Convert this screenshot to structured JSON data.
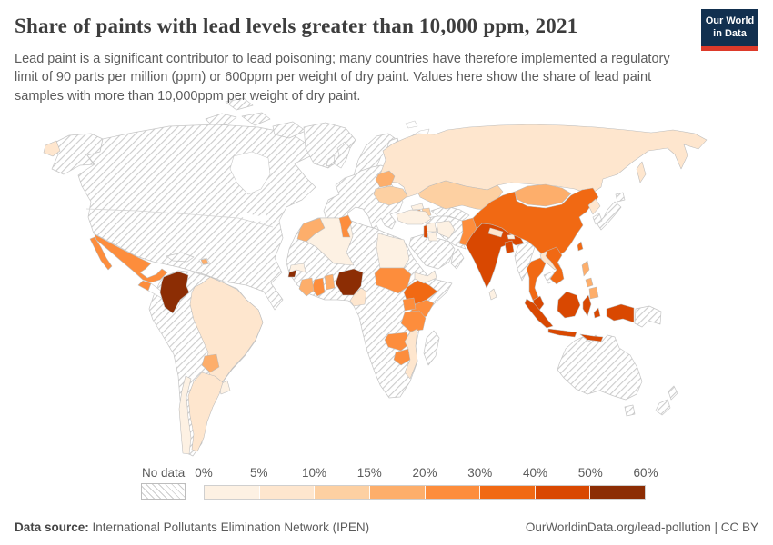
{
  "header": {
    "title": "Share of paints with lead levels greater than 10,000 ppm, 2021",
    "subtitle": "Lead paint is a significant contributor to lead poisoning; many countries have therefore implemented a regulatory limit of 90 parts per million (ppm) or 600ppm per weight of dry paint. Values here show the share of lead paint samples with more than 10,000ppm per weight of dry paint.",
    "logo": {
      "line1": "Our World",
      "line2": "in Data"
    }
  },
  "legend": {
    "no_data_label": "No data",
    "tick_labels": [
      "0%",
      "5%",
      "10%",
      "15%",
      "20%",
      "30%",
      "40%",
      "50%",
      "60%"
    ],
    "colors": [
      "#fdf1e3",
      "#fee6ce",
      "#fdd0a2",
      "#fdae6b",
      "#fd8d3c",
      "#f16913",
      "#d94801",
      "#8c2d04"
    ]
  },
  "map": {
    "countries": {
      "mexico": 4,
      "guatemala": 4,
      "dominican-republic": 3,
      "colombia": 7,
      "brazil": 1,
      "paraguay": 3,
      "uruguay": 0,
      "argentina": 1,
      "chile": 0,
      "morocco": 3,
      "algeria": 0,
      "tunisia": 4,
      "egypt": 0,
      "sudan": 4,
      "ethiopia": 5,
      "kenya": 4,
      "uganda": 4,
      "tanzania": 4,
      "zambia": 4,
      "zimbabwe": 4,
      "mozambique": 1,
      "nigeria": 7,
      "ghana": 4,
      "cote-divoire": 3,
      "togo-benin": 3,
      "cameroon": 1,
      "sierra-leone": 7,
      "guinea": 0,
      "russia": 1,
      "kazakhstan": 2,
      "belarus": 3,
      "ukraine": 2,
      "georgia": 0,
      "armenia": 4,
      "azerbaijan": 2,
      "turkey": 0,
      "syria": 0,
      "lebanon-israel": 6,
      "jordan": 0,
      "iraq": 0,
      "yemen": 0,
      "kyrgyzstan": 4,
      "tajikistan": 4,
      "pakistan": 4,
      "india": 6,
      "nepal": 1,
      "bhutan": 0,
      "bangladesh": 6,
      "sri-lanka": 0,
      "china": 5,
      "mongolia": 3,
      "taiwan": 5,
      "north-korea": 1,
      "laos": 1,
      "thailand": 5,
      "vietnam": 5,
      "malaysia": 6,
      "indonesia": 6,
      "philippines": 3
    }
  },
  "footer": {
    "source_label": "Data source:",
    "source_value": " International Pollutants Elimination Network (IPEN)",
    "right_text": "OurWorldinData.org/lead-pollution | CC BY"
  },
  "chart_data": {
    "type": "choropleth",
    "title": "Share of paints with lead levels greater than 10,000 ppm, 2021",
    "year": 2021,
    "unit": "share of lead paint samples with more than 10,000 ppm lead per weight of dry paint",
    "legend_position": "bottom",
    "bins": [
      {
        "range": "0-5%",
        "color": "#fdf1e3"
      },
      {
        "range": "5-10%",
        "color": "#fee6ce"
      },
      {
        "range": "10-15%",
        "color": "#fdd0a2"
      },
      {
        "range": "15-20%",
        "color": "#fdae6b"
      },
      {
        "range": "20-30%",
        "color": "#fd8d3c"
      },
      {
        "range": "30-40%",
        "color": "#f16913"
      },
      {
        "range": "40-50%",
        "color": "#d94801"
      },
      {
        "range": "50-60%",
        "color": "#8c2d04"
      }
    ],
    "values_by_country": {
      "Mexico": "20-30%",
      "Guatemala": "20-30%",
      "Colombia": "50-60%",
      "Brazil": "5-10%",
      "Paraguay": "15-20%",
      "Argentina": "5-10%",
      "Chile": "0-5%",
      "Uruguay": "0-5%",
      "Morocco": "15-20%",
      "Algeria": "0-5%",
      "Tunisia": "20-30%",
      "Egypt": "0-5%",
      "Sudan": "20-30%",
      "Ethiopia": "30-40%",
      "Kenya": "20-30%",
      "Uganda": "20-30%",
      "Tanzania": "20-30%",
      "Zambia": "20-30%",
      "Zimbabwe": "20-30%",
      "Mozambique": "5-10%",
      "Nigeria": "50-60%",
      "Ghana": "20-30%",
      "Cote d'Ivoire": "15-20%",
      "Togo/Benin": "15-20%",
      "Cameroon": "5-10%",
      "Sierra Leone": "50-60%",
      "Guinea": "0-5%",
      "Russia": "5-10%",
      "Kazakhstan": "10-15%",
      "Belarus": "15-20%",
      "Ukraine": "10-15%",
      "Georgia": "0-5%",
      "Armenia": "20-30%",
      "Azerbaijan": "10-15%",
      "Turkey": "0-5%",
      "Syria": "0-5%",
      "Lebanon/Israel": "40-50%",
      "Jordan": "0-5%",
      "Iraq": "0-5%",
      "Yemen": "0-5%",
      "Kyrgyzstan": "20-30%",
      "Tajikistan": "20-30%",
      "Pakistan": "20-30%",
      "India": "40-50%",
      "Nepal": "5-10%",
      "Bhutan": "0-5%",
      "Bangladesh": "40-50%",
      "Sri Lanka": "0-5%",
      "China": "30-40%",
      "Mongolia": "15-20%",
      "Taiwan": "30-40%",
      "North Korea": "5-10%",
      "Laos": "5-10%",
      "Thailand": "30-40%",
      "Vietnam": "30-40%",
      "Malaysia": "40-50%",
      "Indonesia": "40-50%",
      "Philippines": "15-20%"
    },
    "no_data_regions": [
      "United States",
      "Canada",
      "Greenland",
      "most of Europe",
      "Peru",
      "Bolivia",
      "Ecuador",
      "Venezuela",
      "Cuba",
      "Libya",
      "Sahel band",
      "DR Congo",
      "Angola",
      "South Africa",
      "Somalia",
      "Madagascar",
      "Saudi Arabia",
      "Iran",
      "Afghanistan",
      "Myanmar",
      "Cambodia",
      "Japan",
      "South Korea",
      "Papua New Guinea",
      "Australia",
      "New Zealand"
    ]
  }
}
